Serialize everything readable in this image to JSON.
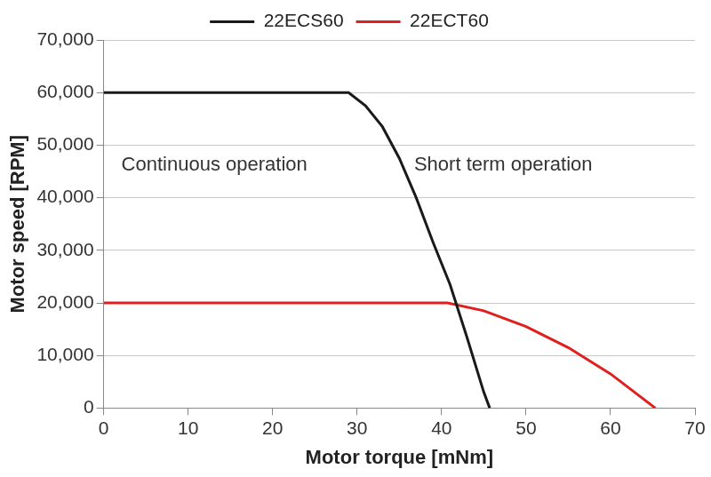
{
  "chart_data": {
    "type": "line",
    "x_label": "Motor torque [mNm]",
    "y_label": "Motor speed [RPM]",
    "legend": "top",
    "grid": "y",
    "marker": "none",
    "series": [
      {
        "name": "22ECS60",
        "color": "#1a1a1a",
        "x": [
          0,
          29,
          31,
          33,
          35,
          37,
          39,
          41,
          43,
          45,
          45.7
        ],
        "values": [
          60000,
          60000,
          57500,
          53500,
          47500,
          40000,
          31500,
          23500,
          13500,
          3000,
          0
        ]
      },
      {
        "name": "22ECT60",
        "color": "#e0201f",
        "x": [
          0,
          40.7,
          45,
          50,
          55,
          60,
          65.3
        ],
        "values": [
          20000,
          20000,
          18500,
          15500,
          11500,
          6500,
          0
        ]
      }
    ],
    "xlim": [
      0,
      70
    ],
    "xticks": [
      0,
      10,
      20,
      30,
      40,
      50,
      60,
      70
    ],
    "ylim": [
      0,
      70000
    ],
    "yticks": [
      0,
      {
        "value": 10000,
        "label": "10,000"
      },
      {
        "value": 20000,
        "label": "20,000"
      },
      {
        "value": 30000,
        "label": "30,000"
      },
      {
        "value": 40000,
        "label": "40,000"
      },
      {
        "value": 50000,
        "label": "50,000"
      },
      {
        "value": 60000,
        "label": "60,000"
      },
      {
        "value": 70000,
        "label": "70,000"
      }
    ],
    "annotations": [
      {
        "text": "Continuous operation"
      },
      {
        "text": "Short term operation"
      }
    ]
  }
}
